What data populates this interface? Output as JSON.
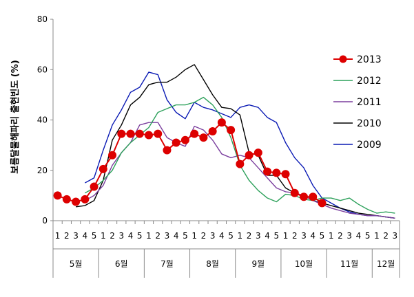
{
  "chart_data": {
    "type": "line",
    "ylabel": "보름달물해파리 출현빈도 (%)",
    "ylim": [
      0,
      80
    ],
    "yticks": [
      "0",
      "20",
      "40",
      "60",
      "80"
    ],
    "grid": false,
    "legend_position": "right",
    "x_weeks": [
      "1",
      "2",
      "3",
      "4",
      "5",
      "1",
      "2",
      "3",
      "4",
      "5",
      "1",
      "2",
      "3",
      "4",
      "5",
      "1",
      "2",
      "3",
      "4",
      "5",
      "1",
      "2",
      "3",
      "4",
      "5",
      "1",
      "2",
      "3",
      "4",
      "5",
      "1",
      "2",
      "3",
      "4",
      "5",
      "1",
      "2",
      "3"
    ],
    "months": [
      {
        "label": "5월",
        "weeks": 5
      },
      {
        "label": "6월",
        "weeks": 5
      },
      {
        "label": "7월",
        "weeks": 5
      },
      {
        "label": "8월",
        "weeks": 5
      },
      {
        "label": "9월",
        "weeks": 5
      },
      {
        "label": "10월",
        "weeks": 5
      },
      {
        "label": "11월",
        "weeks": 5
      },
      {
        "label": "12월",
        "weeks": 3
      }
    ],
    "series": [
      {
        "name": "2013",
        "color": "#dd0000",
        "marker": "circle",
        "values": [
          10,
          8.5,
          7.5,
          8.5,
          13.5,
          20.5,
          26,
          34.5,
          34.5,
          34.5,
          34,
          34.5,
          28,
          31,
          32,
          34.5,
          33,
          35.5,
          39,
          36,
          22.5,
          26,
          27,
          19.5,
          19,
          18.5,
          11,
          9.5,
          9.5,
          7,
          null,
          null,
          null,
          null,
          null,
          null,
          null,
          null
        ]
      },
      {
        "name": "2012",
        "color": "#2ca05a",
        "marker": "none",
        "values": [
          null,
          null,
          null,
          11,
          13,
          16,
          20,
          27,
          31,
          34,
          37,
          43,
          44.5,
          46,
          46,
          47,
          49,
          46,
          41,
          33,
          22,
          16,
          12,
          9,
          7.5,
          10.5,
          10,
          8.5,
          8,
          9,
          9,
          8,
          9,
          6.5,
          4.5,
          3,
          3.5,
          3
        ]
      },
      {
        "name": "2011",
        "color": "#7b3f9e",
        "marker": "none",
        "values": [
          null,
          null,
          null,
          8,
          10,
          14,
          22,
          27,
          31,
          38,
          39,
          39,
          33,
          31,
          29.5,
          37.5,
          36,
          32,
          26.5,
          25,
          26,
          25,
          21,
          17,
          13,
          11.5,
          11,
          10,
          8,
          6.5,
          5,
          4,
          3,
          2.5,
          2,
          2,
          1.5,
          1
        ]
      },
      {
        "name": "2010",
        "color": "#000000",
        "marker": "none",
        "values": [
          null,
          null,
          5.5,
          6,
          8,
          16,
          32,
          38,
          46,
          49,
          54,
          55,
          55,
          57,
          60,
          62,
          56,
          50,
          45,
          44.5,
          42,
          27,
          26,
          18,
          18,
          13,
          11,
          10,
          8,
          7,
          6,
          5,
          4,
          3,
          2.5,
          2,
          1.5,
          1
        ]
      },
      {
        "name": "2009",
        "color": "#0a1ab4",
        "marker": "none",
        "values": [
          null,
          null,
          null,
          15,
          17,
          28,
          38,
          44,
          51,
          53,
          59,
          58,
          48,
          43,
          40.5,
          47,
          45,
          44,
          42.5,
          41,
          45,
          46,
          45,
          41,
          39,
          31,
          25,
          21,
          14,
          9,
          7,
          5,
          3.5,
          2.5,
          2,
          2,
          1.5,
          1
        ]
      }
    ]
  }
}
